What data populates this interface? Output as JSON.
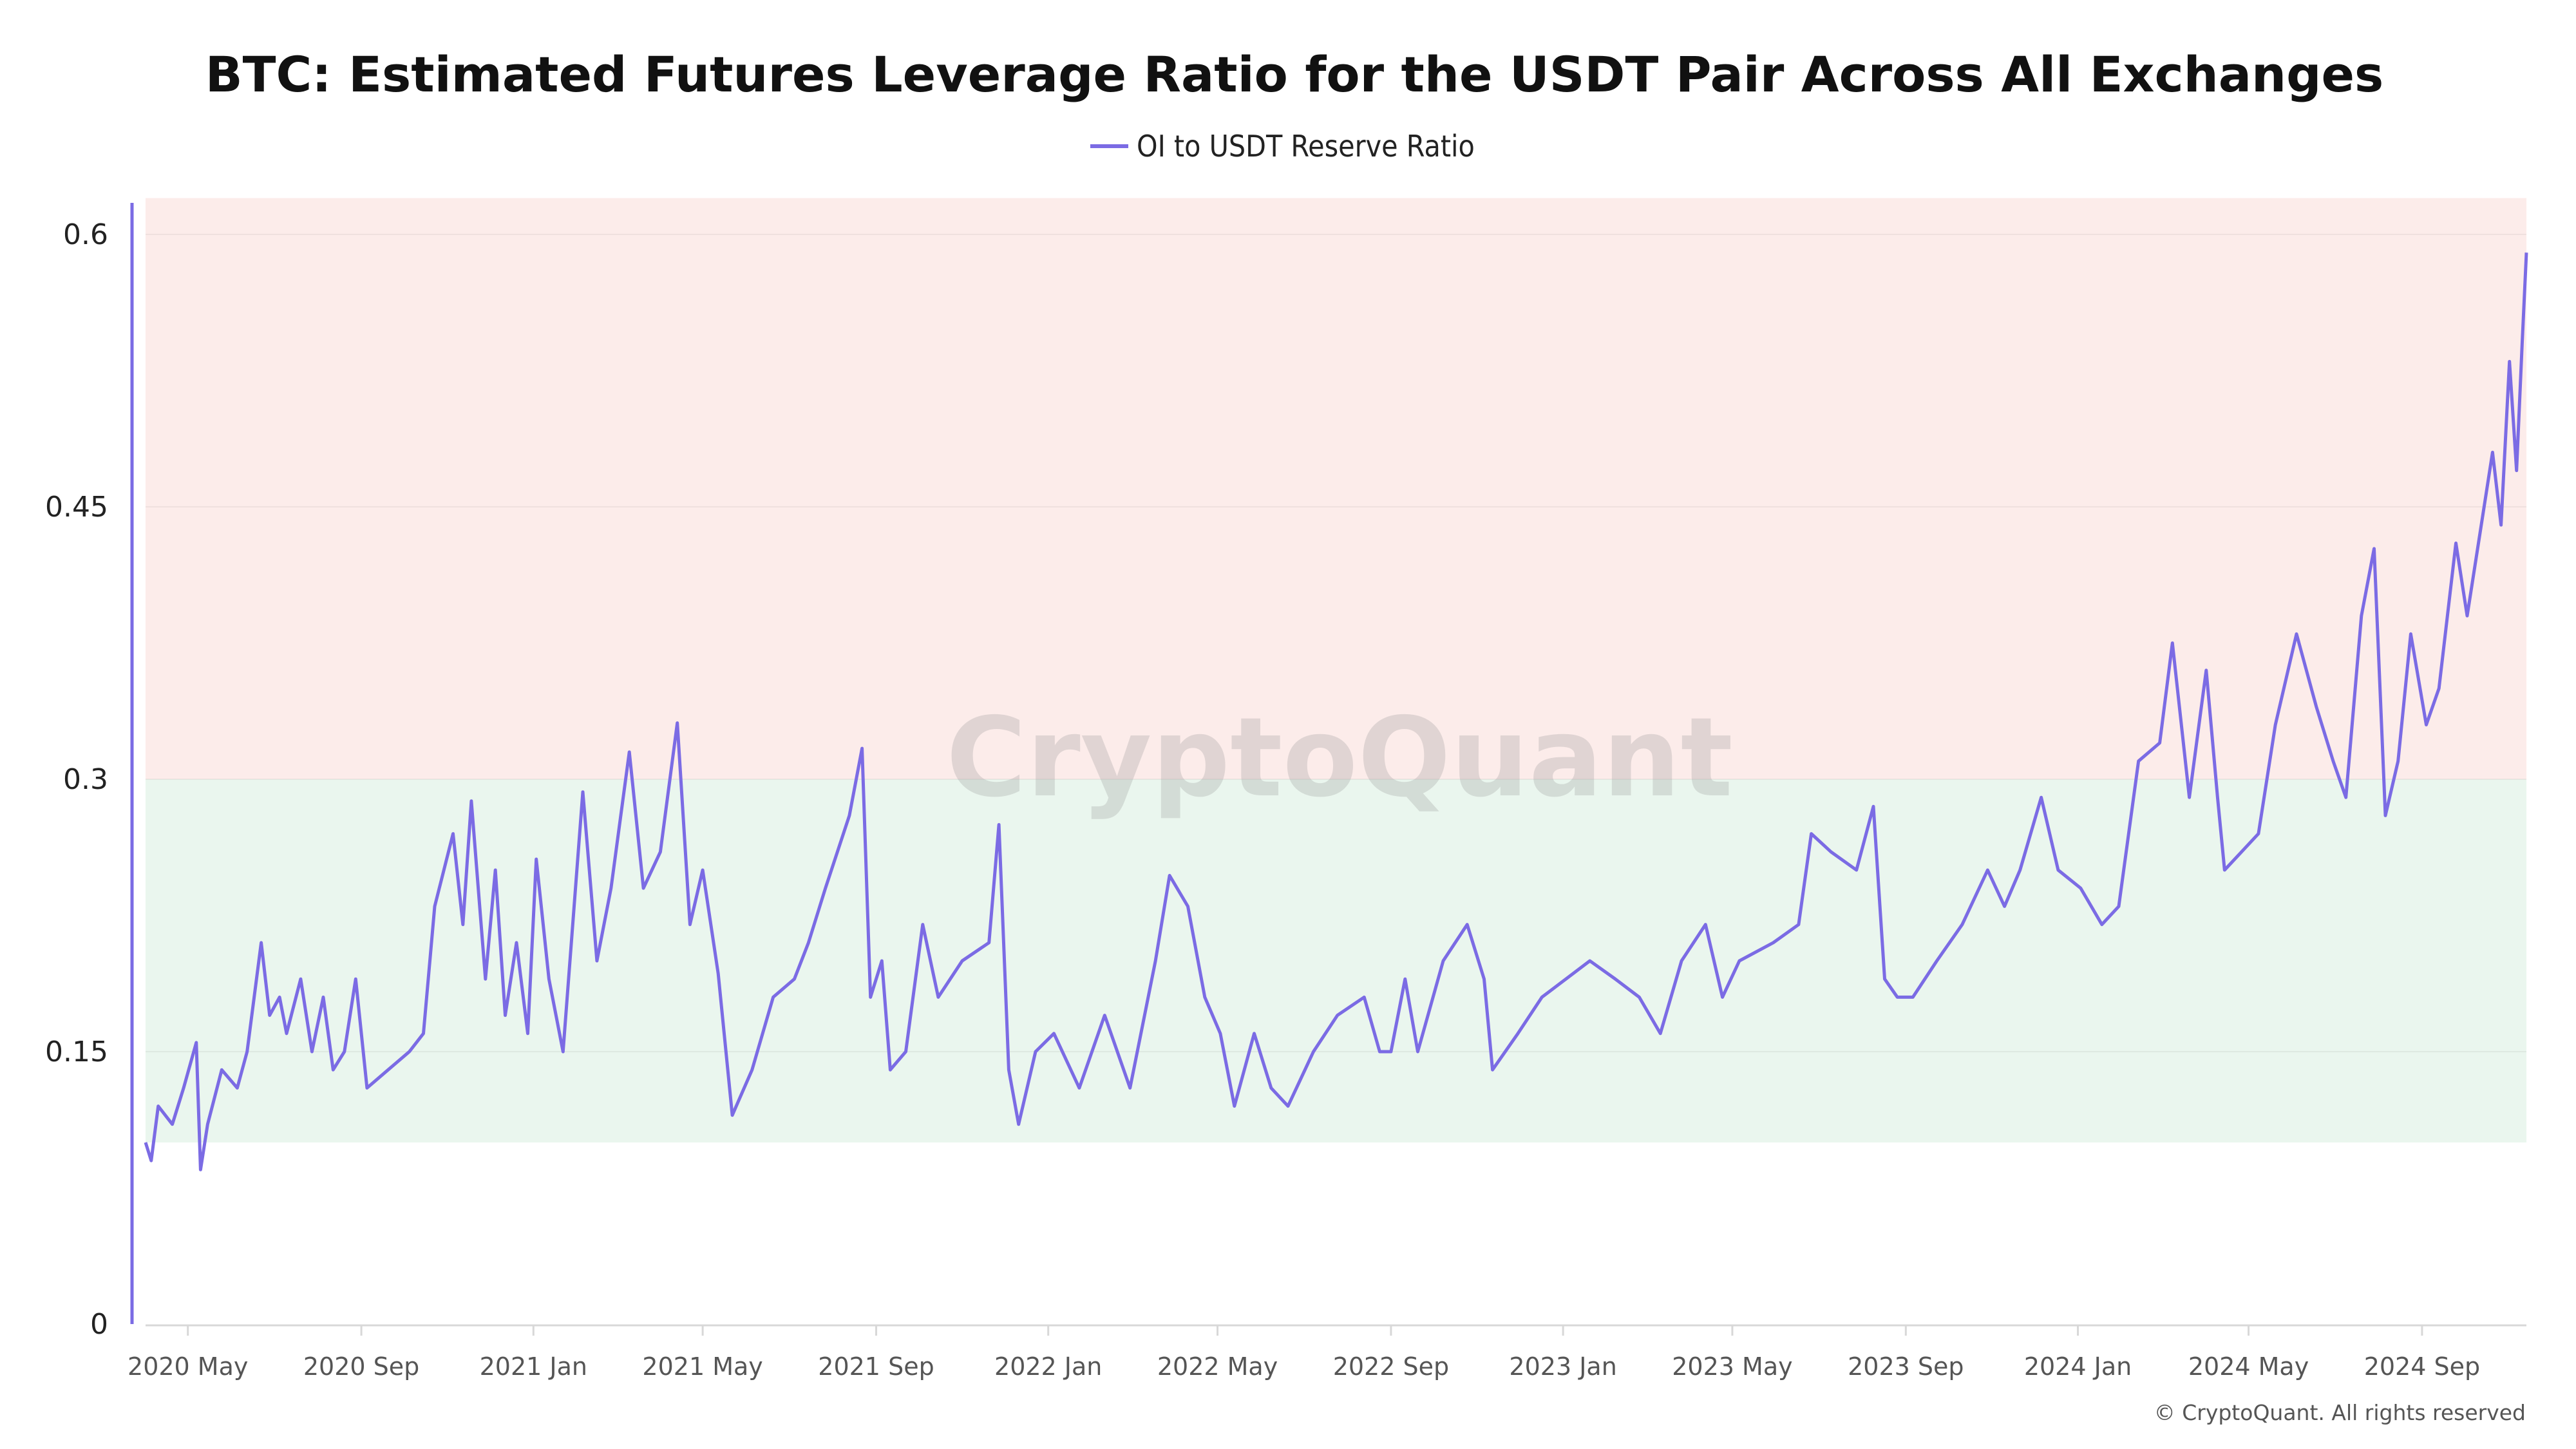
{
  "chart_data": {
    "type": "line",
    "title": "BTC: Estimated Futures Leverage Ratio for the USDT Pair Across All Exchanges",
    "xlabel": "",
    "ylabel": "",
    "ylim": [
      0,
      0.62
    ],
    "yticks": [
      "0",
      "0.15",
      "0.3",
      "0.45",
      "0.6"
    ],
    "ytick_values": [
      0,
      0.15,
      0.3,
      0.45,
      0.6
    ],
    "xticks": [
      {
        "label": "2020 May",
        "date": "2020-05-01"
      },
      {
        "label": "2020 Sep",
        "date": "2020-09-01"
      },
      {
        "label": "2021 Jan",
        "date": "2021-01-01"
      },
      {
        "label": "2021 May",
        "date": "2021-05-01"
      },
      {
        "label": "2021 Sep",
        "date": "2021-09-01"
      },
      {
        "label": "2022 Jan",
        "date": "2022-01-01"
      },
      {
        "label": "2022 May",
        "date": "2022-05-01"
      },
      {
        "label": "2022 Sep",
        "date": "2022-09-01"
      },
      {
        "label": "2023 Jan",
        "date": "2023-01-01"
      },
      {
        "label": "2023 May",
        "date": "2023-05-01"
      },
      {
        "label": "2023 Sep",
        "date": "2023-09-01"
      },
      {
        "label": "2024 Jan",
        "date": "2024-01-01"
      },
      {
        "label": "2024 May",
        "date": "2024-05-01"
      },
      {
        "label": "2024 Sep",
        "date": "2024-09-01"
      }
    ],
    "xlim": [
      "2020-04-01",
      "2024-11-14"
    ],
    "grid": true,
    "legend_placement": "top-center",
    "bands": [
      {
        "from": 0.3,
        "to": 0.62,
        "color": "#fcecea"
      },
      {
        "from": 0.1,
        "to": 0.3,
        "color": "#eaf6ee"
      }
    ],
    "series": [
      {
        "name": "OI to USDT Reserve Ratio",
        "color": "#7b6be4",
        "points": [
          [
            "2020-04-01",
            0.1
          ],
          [
            "2020-04-05",
            0.09
          ],
          [
            "2020-04-10",
            0.12
          ],
          [
            "2020-04-20",
            0.11
          ],
          [
            "2020-04-28",
            0.13
          ],
          [
            "2020-05-07",
            0.155
          ],
          [
            "2020-05-10",
            0.085
          ],
          [
            "2020-05-15",
            0.11
          ],
          [
            "2020-05-25",
            0.14
          ],
          [
            "2020-06-05",
            0.13
          ],
          [
            "2020-06-12",
            0.15
          ],
          [
            "2020-06-22",
            0.21
          ],
          [
            "2020-06-28",
            0.17
          ],
          [
            "2020-07-05",
            0.18
          ],
          [
            "2020-07-10",
            0.16
          ],
          [
            "2020-07-20",
            0.19
          ],
          [
            "2020-07-28",
            0.15
          ],
          [
            "2020-08-05",
            0.18
          ],
          [
            "2020-08-12",
            0.14
          ],
          [
            "2020-08-20",
            0.15
          ],
          [
            "2020-08-28",
            0.19
          ],
          [
            "2020-09-05",
            0.13
          ],
          [
            "2020-09-20",
            0.14
          ],
          [
            "2020-10-05",
            0.15
          ],
          [
            "2020-10-15",
            0.16
          ],
          [
            "2020-10-23",
            0.23
          ],
          [
            "2020-11-05",
            0.27
          ],
          [
            "2020-11-12",
            0.22
          ],
          [
            "2020-11-18",
            0.288
          ],
          [
            "2020-11-28",
            0.19
          ],
          [
            "2020-12-05",
            0.25
          ],
          [
            "2020-12-12",
            0.17
          ],
          [
            "2020-12-20",
            0.21
          ],
          [
            "2020-12-28",
            0.16
          ],
          [
            "2021-01-03",
            0.256
          ],
          [
            "2021-01-12",
            0.19
          ],
          [
            "2021-01-22",
            0.15
          ],
          [
            "2021-02-05",
            0.293
          ],
          [
            "2021-02-15",
            0.2
          ],
          [
            "2021-02-25",
            0.24
          ],
          [
            "2021-03-10",
            0.315
          ],
          [
            "2021-03-20",
            0.24
          ],
          [
            "2021-04-01",
            0.26
          ],
          [
            "2021-04-13",
            0.331
          ],
          [
            "2021-04-22",
            0.22
          ],
          [
            "2021-05-01",
            0.25
          ],
          [
            "2021-05-12",
            0.193
          ],
          [
            "2021-05-22",
            0.115
          ],
          [
            "2021-06-05",
            0.14
          ],
          [
            "2021-06-20",
            0.18
          ],
          [
            "2021-07-05",
            0.19
          ],
          [
            "2021-07-15",
            0.21
          ],
          [
            "2021-07-27",
            0.24
          ],
          [
            "2021-08-13",
            0.28
          ],
          [
            "2021-08-22",
            0.317
          ],
          [
            "2021-08-28",
            0.18
          ],
          [
            "2021-09-05",
            0.2
          ],
          [
            "2021-09-11",
            0.14
          ],
          [
            "2021-09-22",
            0.15
          ],
          [
            "2021-10-04",
            0.22
          ],
          [
            "2021-10-15",
            0.18
          ],
          [
            "2021-11-01",
            0.2
          ],
          [
            "2021-11-20",
            0.21
          ],
          [
            "2021-11-27",
            0.275
          ],
          [
            "2021-12-04",
            0.14
          ],
          [
            "2021-12-11",
            0.11
          ],
          [
            "2021-12-23",
            0.15
          ],
          [
            "2022-01-05",
            0.16
          ],
          [
            "2022-01-23",
            0.13
          ],
          [
            "2022-02-10",
            0.17
          ],
          [
            "2022-02-28",
            0.13
          ],
          [
            "2022-03-18",
            0.2
          ],
          [
            "2022-03-28",
            0.247
          ],
          [
            "2022-04-10",
            0.23
          ],
          [
            "2022-04-22",
            0.18
          ],
          [
            "2022-05-03",
            0.16
          ],
          [
            "2022-05-13",
            0.12
          ],
          [
            "2022-05-27",
            0.16
          ],
          [
            "2022-06-08",
            0.13
          ],
          [
            "2022-06-20",
            0.12
          ],
          [
            "2022-07-08",
            0.15
          ],
          [
            "2022-07-25",
            0.17
          ],
          [
            "2022-08-13",
            0.18
          ],
          [
            "2022-08-24",
            0.15
          ],
          [
            "2022-09-01",
            0.15
          ],
          [
            "2022-09-11",
            0.19
          ],
          [
            "2022-09-20",
            0.15
          ],
          [
            "2022-10-08",
            0.2
          ],
          [
            "2022-10-25",
            0.22
          ],
          [
            "2022-11-06",
            0.19
          ],
          [
            "2022-11-12",
            0.14
          ],
          [
            "2022-11-30",
            0.16
          ],
          [
            "2022-12-17",
            0.18
          ],
          [
            "2023-01-03",
            0.19
          ],
          [
            "2023-01-20",
            0.2
          ],
          [
            "2023-02-07",
            0.19
          ],
          [
            "2023-02-24",
            0.18
          ],
          [
            "2023-03-11",
            0.16
          ],
          [
            "2023-03-26",
            0.2
          ],
          [
            "2023-04-12",
            0.22
          ],
          [
            "2023-04-24",
            0.18
          ],
          [
            "2023-05-06",
            0.2
          ],
          [
            "2023-05-30",
            0.21
          ],
          [
            "2023-06-17",
            0.22
          ],
          [
            "2023-06-26",
            0.27
          ],
          [
            "2023-07-10",
            0.26
          ],
          [
            "2023-07-28",
            0.25
          ],
          [
            "2023-08-09",
            0.285
          ],
          [
            "2023-08-17",
            0.19
          ],
          [
            "2023-08-26",
            0.18
          ],
          [
            "2023-09-06",
            0.18
          ],
          [
            "2023-09-23",
            0.2
          ],
          [
            "2023-10-11",
            0.22
          ],
          [
            "2023-10-29",
            0.25
          ],
          [
            "2023-11-10",
            0.23
          ],
          [
            "2023-11-21",
            0.25
          ],
          [
            "2023-12-06",
            0.29
          ],
          [
            "2023-12-18",
            0.25
          ],
          [
            "2024-01-03",
            0.24
          ],
          [
            "2024-01-18",
            0.22
          ],
          [
            "2024-01-30",
            0.23
          ],
          [
            "2024-02-13",
            0.31
          ],
          [
            "2024-02-28",
            0.32
          ],
          [
            "2024-03-08",
            0.375
          ],
          [
            "2024-03-20",
            0.29
          ],
          [
            "2024-04-01",
            0.36
          ],
          [
            "2024-04-09",
            0.29
          ],
          [
            "2024-04-14",
            0.25
          ],
          [
            "2024-04-26",
            0.26
          ],
          [
            "2024-05-08",
            0.27
          ],
          [
            "2024-05-20",
            0.33
          ],
          [
            "2024-06-04",
            0.38
          ],
          [
            "2024-06-18",
            0.34
          ],
          [
            "2024-06-30",
            0.31
          ],
          [
            "2024-07-09",
            0.29
          ],
          [
            "2024-07-20",
            0.39
          ],
          [
            "2024-07-29",
            0.427
          ],
          [
            "2024-08-06",
            0.28
          ],
          [
            "2024-08-15",
            0.31
          ],
          [
            "2024-08-24",
            0.38
          ],
          [
            "2024-09-04",
            0.33
          ],
          [
            "2024-09-13",
            0.35
          ],
          [
            "2024-09-25",
            0.43
          ],
          [
            "2024-10-03",
            0.39
          ],
          [
            "2024-10-15",
            0.45
          ],
          [
            "2024-10-21",
            0.48
          ],
          [
            "2024-10-27",
            0.44
          ],
          [
            "2024-11-02",
            0.53
          ],
          [
            "2024-11-07",
            0.47
          ],
          [
            "2024-11-11",
            0.54
          ],
          [
            "2024-11-14",
            0.59
          ]
        ]
      }
    ]
  },
  "legend": {
    "label": "OI to USDT Reserve Ratio"
  },
  "watermark": "CryptoQuant",
  "copyright": "© CryptoQuant. All rights reserved"
}
